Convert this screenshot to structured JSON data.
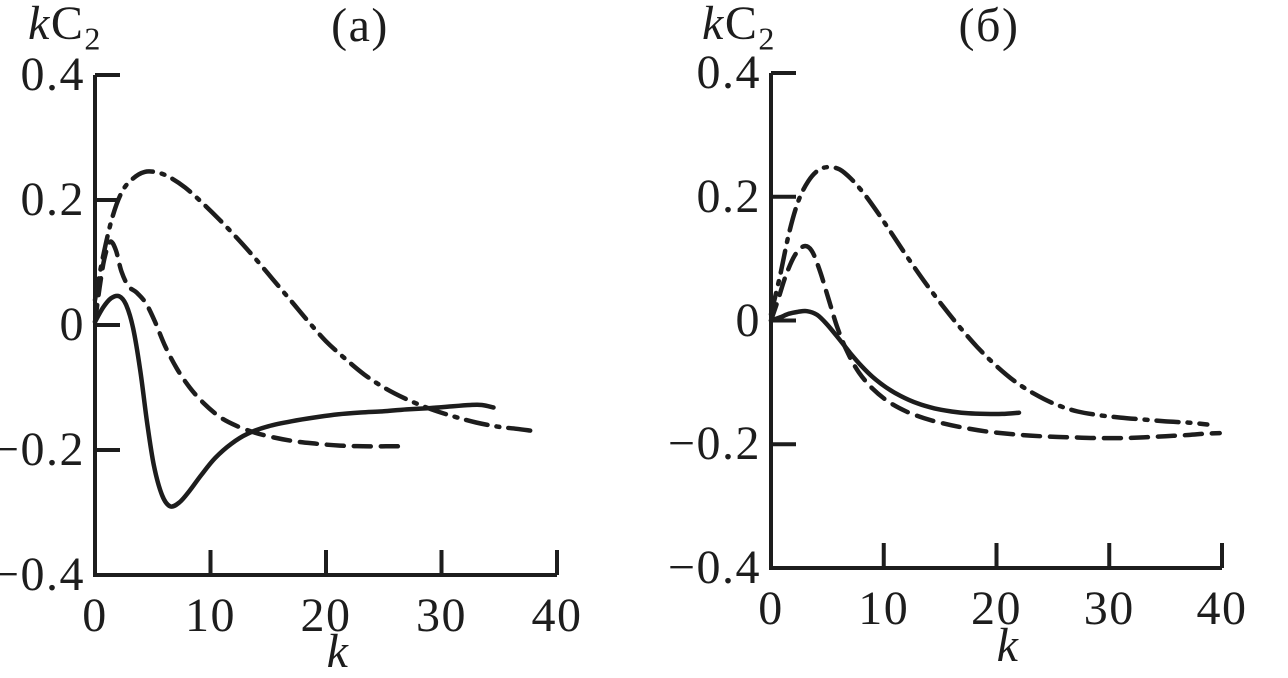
{
  "background": "#ffffff",
  "ink_color": "#1d1d1d",
  "chart_data": [
    {
      "type": "line",
      "panel_label": "(a)",
      "y_axis_title": {
        "italic_var": "k",
        "symbol": "C",
        "subscript": "2"
      },
      "xlabel": "k",
      "xlim": [
        0,
        40
      ],
      "ylim": [
        -0.4,
        0.4
      ],
      "x_tick_values": [
        0,
        10,
        20,
        30,
        40
      ],
      "x_tick_labels": [
        "0",
        "10",
        "20",
        "30",
        "40"
      ],
      "y_tick_values": [
        0.4,
        0.2,
        0,
        -0.2,
        -0.4
      ],
      "y_tick_labels": [
        "0.4",
        "0.2",
        "0",
        "−0.2",
        "−0.4"
      ],
      "grid": false,
      "legend": "none",
      "series": [
        {
          "name": "solid",
          "line_style": "solid",
          "points": [
            [
              0,
              0.005
            ],
            [
              0.7,
              0.028
            ],
            [
              1.4,
              0.043
            ],
            [
              2.1,
              0.046
            ],
            [
              2.7,
              0.032
            ],
            [
              3.3,
              -0.005
            ],
            [
              3.9,
              -0.07
            ],
            [
              4.5,
              -0.155
            ],
            [
              5.1,
              -0.225
            ],
            [
              5.8,
              -0.272
            ],
            [
              6.5,
              -0.29
            ],
            [
              7.3,
              -0.284
            ],
            [
              8.2,
              -0.265
            ],
            [
              9.2,
              -0.24
            ],
            [
              10.4,
              -0.213
            ],
            [
              11.8,
              -0.19
            ],
            [
              13.2,
              -0.174
            ],
            [
              15,
              -0.162
            ],
            [
              17,
              -0.154
            ],
            [
              19,
              -0.148
            ],
            [
              21,
              -0.143
            ],
            [
              23,
              -0.14
            ],
            [
              25,
              -0.138
            ],
            [
              27,
              -0.135
            ],
            [
              29,
              -0.133
            ],
            [
              31,
              -0.13
            ],
            [
              32.5,
              -0.128
            ],
            [
              33.5,
              -0.128
            ],
            [
              34.5,
              -0.132
            ]
          ]
        },
        {
          "name": "dashed",
          "line_style": "dashed",
          "points": [
            [
              0,
              0.005
            ],
            [
              0.4,
              0.06
            ],
            [
              0.8,
              0.105
            ],
            [
              1.3,
              0.133
            ],
            [
              1.8,
              0.12
            ],
            [
              2.3,
              0.085
            ],
            [
              2.9,
              0.062
            ],
            [
              3.6,
              0.052
            ],
            [
              4.4,
              0.035
            ],
            [
              5.2,
              0.005
            ],
            [
              6.1,
              -0.035
            ],
            [
              7.1,
              -0.07
            ],
            [
              8.2,
              -0.1
            ],
            [
              9.4,
              -0.125
            ],
            [
              10.8,
              -0.147
            ],
            [
              12.2,
              -0.161
            ],
            [
              13.8,
              -0.172
            ],
            [
              15.5,
              -0.18
            ],
            [
              17.3,
              -0.186
            ],
            [
              19.2,
              -0.19
            ],
            [
              21.2,
              -0.193
            ],
            [
              23.2,
              -0.194
            ],
            [
              25.2,
              -0.194
            ],
            [
              26.5,
              -0.194
            ]
          ]
        },
        {
          "name": "dash-dot",
          "line_style": "dashdot",
          "points": [
            [
              0,
              0.04
            ],
            [
              0.7,
              0.11
            ],
            [
              1.5,
              0.172
            ],
            [
              2.3,
              0.212
            ],
            [
              3.2,
              0.233
            ],
            [
              4.3,
              0.245
            ],
            [
              5.4,
              0.244
            ],
            [
              6.5,
              0.236
            ],
            [
              7.8,
              0.22
            ],
            [
              9.2,
              0.197
            ],
            [
              10.7,
              0.17
            ],
            [
              12.2,
              0.141
            ],
            [
              13.8,
              0.108
            ],
            [
              15.4,
              0.073
            ],
            [
              17,
              0.038
            ],
            [
              18.5,
              0.005
            ],
            [
              20,
              -0.026
            ],
            [
              21.6,
              -0.053
            ],
            [
              23.3,
              -0.079
            ],
            [
              25.1,
              -0.101
            ],
            [
              27,
              -0.119
            ],
            [
              29,
              -0.134
            ],
            [
              31,
              -0.146
            ],
            [
              33,
              -0.156
            ],
            [
              35,
              -0.163
            ],
            [
              36.5,
              -0.166
            ],
            [
              37.7,
              -0.169
            ]
          ]
        }
      ]
    },
    {
      "type": "line",
      "panel_label": "(б)",
      "y_axis_title": {
        "italic_var": "k",
        "symbol": "C",
        "subscript": "2"
      },
      "xlabel": "k",
      "xlim": [
        0,
        40
      ],
      "ylim": [
        -0.4,
        0.4
      ],
      "x_tick_values": [
        0,
        10,
        20,
        30,
        40
      ],
      "x_tick_labels": [
        "0",
        "10",
        "20",
        "30",
        "40"
      ],
      "y_tick_values": [
        0.4,
        0.2,
        0,
        -0.2,
        -0.4
      ],
      "y_tick_labels": [
        "0.4",
        "0.2",
        "0",
        "−0.2",
        "−0.4"
      ],
      "grid": false,
      "legend": "none",
      "series": [
        {
          "name": "solid",
          "line_style": "solid",
          "points": [
            [
              0,
              0
            ],
            [
              0.8,
              0.005
            ],
            [
              1.6,
              0.011
            ],
            [
              2.4,
              0.014
            ],
            [
              3.2,
              0.015
            ],
            [
              4.1,
              0.009
            ],
            [
              5,
              -0.007
            ],
            [
              6,
              -0.029
            ],
            [
              7,
              -0.052
            ],
            [
              8,
              -0.073
            ],
            [
              9,
              -0.091
            ],
            [
              10.2,
              -0.108
            ],
            [
              11.5,
              -0.122
            ],
            [
              13,
              -0.134
            ],
            [
              14.5,
              -0.142
            ],
            [
              16,
              -0.147
            ],
            [
              17.5,
              -0.15
            ],
            [
              19,
              -0.151
            ],
            [
              20.5,
              -0.151
            ],
            [
              22,
              -0.149
            ]
          ]
        },
        {
          "name": "dashed",
          "line_style": "dashed",
          "points": [
            [
              0,
              0
            ],
            [
              0.6,
              0.032
            ],
            [
              1.3,
              0.072
            ],
            [
              2.1,
              0.105
            ],
            [
              2.9,
              0.12
            ],
            [
              3.6,
              0.113
            ],
            [
              4.3,
              0.082
            ],
            [
              5.1,
              0.035
            ],
            [
              5.9,
              -0.012
            ],
            [
              6.8,
              -0.052
            ],
            [
              7.8,
              -0.084
            ],
            [
              9,
              -0.11
            ],
            [
              10.4,
              -0.131
            ],
            [
              12,
              -0.147
            ],
            [
              13.6,
              -0.158
            ],
            [
              15.2,
              -0.166
            ],
            [
              17,
              -0.173
            ],
            [
              19,
              -0.179
            ],
            [
              21,
              -0.183
            ],
            [
              23,
              -0.186
            ],
            [
              25,
              -0.188
            ],
            [
              27,
              -0.189
            ],
            [
              29,
              -0.19
            ],
            [
              31,
              -0.19
            ],
            [
              33,
              -0.189
            ],
            [
              35,
              -0.187
            ],
            [
              37,
              -0.185
            ],
            [
              38.5,
              -0.183
            ],
            [
              39.8,
              -0.182
            ]
          ]
        },
        {
          "name": "dash-dot",
          "line_style": "dashdot",
          "points": [
            [
              0,
              0.01
            ],
            [
              0.8,
              0.072
            ],
            [
              1.6,
              0.141
            ],
            [
              2.4,
              0.192
            ],
            [
              3.3,
              0.225
            ],
            [
              4.2,
              0.243
            ],
            [
              5.1,
              0.248
            ],
            [
              6.1,
              0.244
            ],
            [
              7.1,
              0.229
            ],
            [
              8.2,
              0.206
            ],
            [
              9.4,
              0.176
            ],
            [
              10.8,
              0.138
            ],
            [
              12.3,
              0.097
            ],
            [
              13.8,
              0.058
            ],
            [
              15.3,
              0.022
            ],
            [
              16.8,
              -0.012
            ],
            [
              18.3,
              -0.043
            ],
            [
              19.9,
              -0.072
            ],
            [
              21.6,
              -0.098
            ],
            [
              23.4,
              -0.119
            ],
            [
              25.3,
              -0.136
            ],
            [
              27.2,
              -0.147
            ],
            [
              29.1,
              -0.153
            ],
            [
              31,
              -0.157
            ],
            [
              33,
              -0.16
            ],
            [
              35,
              -0.163
            ],
            [
              37,
              -0.165
            ],
            [
              38.7,
              -0.168
            ]
          ]
        }
      ]
    }
  ]
}
